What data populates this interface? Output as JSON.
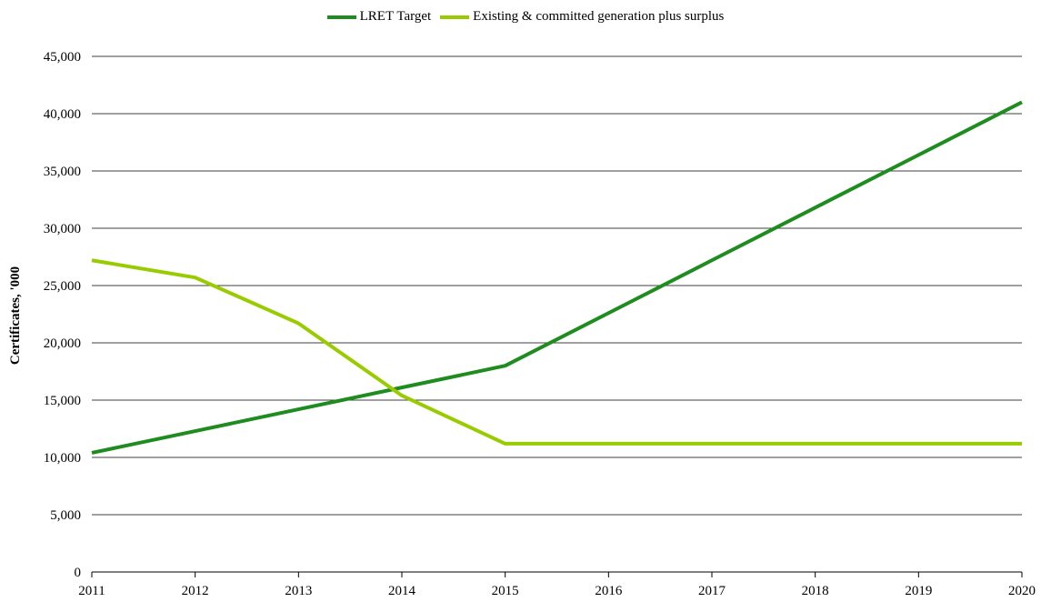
{
  "chart_data": {
    "type": "line",
    "x": [
      2011,
      2012,
      2013,
      2014,
      2015,
      2016,
      2017,
      2018,
      2019,
      2020
    ],
    "x_tick_labels": [
      "2011",
      "2012",
      "2013",
      "2014",
      "2015",
      "2016",
      "2017",
      "2018",
      "2019",
      "2020"
    ],
    "series": [
      {
        "name": "LRET Target",
        "color": "#1e8c1e",
        "values": [
          10400,
          12300,
          14200,
          16100,
          18000,
          22600,
          27200,
          31800,
          36400,
          41000
        ]
      },
      {
        "name": "Existing & committed generation plus surplus",
        "color": "#99cc00",
        "values": [
          27200,
          25700,
          21700,
          15400,
          11200,
          11200,
          11200,
          11200,
          11200,
          11200
        ]
      }
    ],
    "ylabel": "Certificates, '000",
    "xlabel": "",
    "ylim": [
      0,
      45000
    ],
    "y_ticks": [
      0,
      5000,
      10000,
      15000,
      20000,
      25000,
      30000,
      35000,
      40000,
      45000
    ],
    "y_tick_labels": [
      "0",
      "5,000",
      "10,000",
      "15,000",
      "20,000",
      "25,000",
      "30,000",
      "35,000",
      "40,000",
      "45,000"
    ],
    "grid": "horizontal",
    "legend_position": "top-center"
  }
}
